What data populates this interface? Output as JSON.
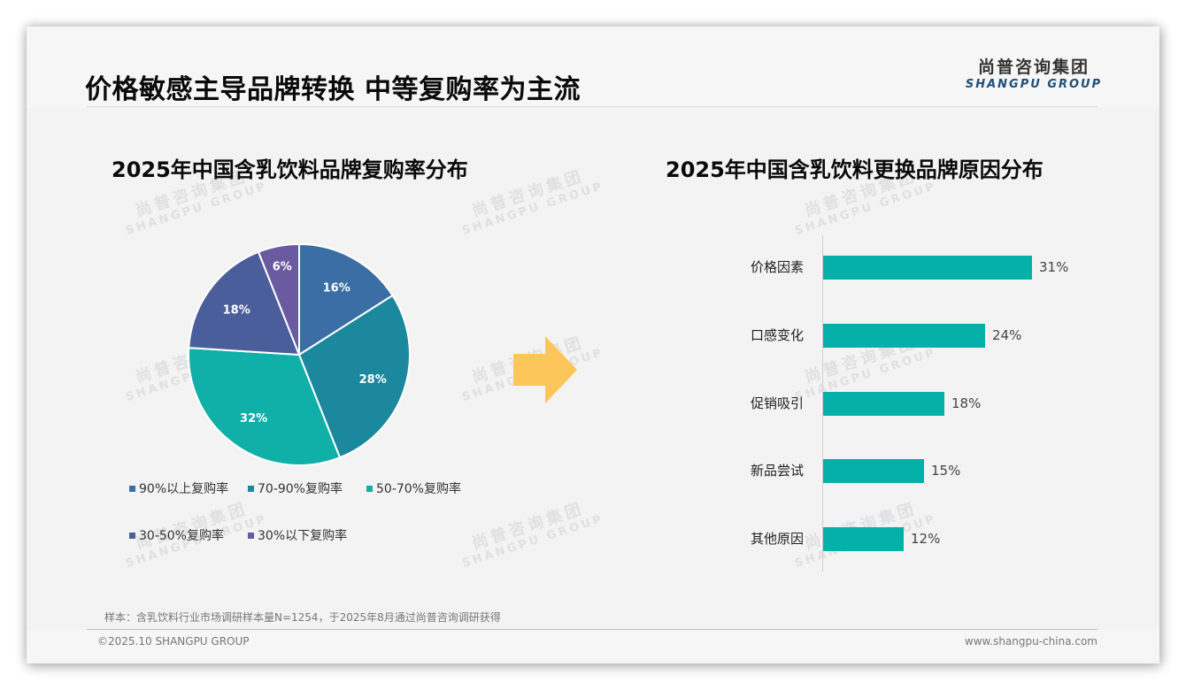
{
  "header": {
    "title": "价格敏感主导品牌转换 中等复购率为主流",
    "logo_cn": "尚普咨询集团",
    "logo_en": "SHANGPU GROUP"
  },
  "watermark": {
    "cn": "尚普咨询集团",
    "en": "SHANGPU GROUP"
  },
  "pie": {
    "title": "2025年中国含乳饮料品牌复购率分布",
    "slices": [
      {
        "label": "90%以上复购率",
        "value": 16,
        "display": "16%",
        "color": "#3b6ea5"
      },
      {
        "label": "70-90%复购率",
        "value": 28,
        "display": "28%",
        "color": "#1b889e"
      },
      {
        "label": "50-70%复购率",
        "value": 32,
        "display": "32%",
        "color": "#10b0a8"
      },
      {
        "label": "30-50%复购率",
        "value": 18,
        "display": "18%",
        "color": "#4b5e9c"
      },
      {
        "label": "30%以下复购率",
        "value": 6,
        "display": "6%",
        "color": "#6a5a9f"
      }
    ]
  },
  "arrow": {
    "icon": "right-arrow-icon",
    "color": "#fcc65a"
  },
  "bars": {
    "title": "2025年中国含乳饮料更换品牌原因分布",
    "color": "#05b0a8",
    "items": [
      {
        "label": "价格因素",
        "value": 31,
        "display": "31%"
      },
      {
        "label": "口感变化",
        "value": 24,
        "display": "24%"
      },
      {
        "label": "促销吸引",
        "value": 18,
        "display": "18%"
      },
      {
        "label": "新品尝试",
        "value": 15,
        "display": "15%"
      },
      {
        "label": "其他原因",
        "value": 12,
        "display": "12%"
      }
    ]
  },
  "footer": {
    "sample_note": "样本：含乳饮料行业市场调研样本量N=1254，于2025年8月通过尚普咨询调研获得",
    "copyright": "©2025.10 SHANGPU GROUP",
    "website": "www.shangpu-china.com"
  },
  "chart_data": [
    {
      "type": "pie",
      "title": "2025年中国含乳饮料品牌复购率分布",
      "categories": [
        "90%以上复购率",
        "70-90%复购率",
        "50-70%复购率",
        "30-50%复购率",
        "30%以下复购率"
      ],
      "values": [
        16,
        28,
        32,
        18,
        6
      ],
      "unit": "%",
      "legend_position": "bottom",
      "colors": [
        "#3b6ea5",
        "#1b889e",
        "#10b0a8",
        "#4b5e9c",
        "#6a5a9f"
      ]
    },
    {
      "type": "bar",
      "orientation": "horizontal",
      "title": "2025年中国含乳饮料更换品牌原因分布",
      "categories": [
        "价格因素",
        "口感变化",
        "促销吸引",
        "新品尝试",
        "其他原因"
      ],
      "values": [
        31,
        24,
        18,
        15,
        12
      ],
      "unit": "%",
      "xlabel": "",
      "ylabel": "",
      "grid": false,
      "data_labels": true,
      "color": "#05b0a8"
    }
  ]
}
